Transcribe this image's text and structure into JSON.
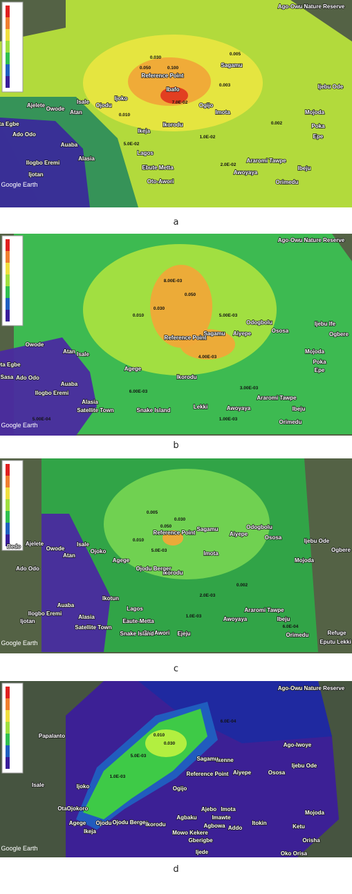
{
  "panels": [
    {
      "label": "a",
      "places": [
        "Ago-Owu Nature Reserve",
        "Ijebu Ode",
        "Reference Point",
        "Ibafo",
        "Sagamu",
        "Ikorodu",
        "Imota",
        "Mojoda",
        "Poka",
        "Epe",
        "Araromi Tawpe",
        "Ibeju",
        "Orimedu",
        "Awoyaya",
        "Lagos",
        "Ikeja",
        "Ebute Metta",
        "Oto-Awori",
        "Alasia",
        "Auaba",
        "Ilogbo Eremi",
        "Ijotan",
        "Ado Odo",
        "Ota Egbe",
        "Ajelete",
        "Owode",
        "Atan",
        "Isale",
        "Ojodu",
        "Ijoko",
        "Ogijo",
        "Google Earth"
      ],
      "contours": [
        "0.100",
        "0.050",
        "0.030",
        "0.010",
        "0.005",
        "0.003",
        "0.002",
        "1.0E-02",
        "7.0E-02",
        "5.0E-02",
        "2.0E-02"
      ]
    },
    {
      "label": "b",
      "places": [
        "Ago-Owu Nature Reserve",
        "Reference Point",
        "Sagamu",
        "Ikorodu",
        "Agege",
        "Alasia",
        "Satellite Town",
        "Snake Island",
        "Lekki",
        "Awoyaya",
        "Araromi Tawpe",
        "Ibeju",
        "Orimedu",
        "Mojoda",
        "Poka",
        "Epe",
        "Ososa",
        "Aiyepe",
        "Odogbolu",
        "Ijebu Ife",
        "Ogbere",
        "Ado Odo",
        "Ota Egbe",
        "Sasa",
        "Owode",
        "Atan",
        "Isale",
        "Auaba",
        "Ilogbo Eremi",
        "Google Earth"
      ],
      "contours": [
        "0.030",
        "0.050",
        "0.010",
        "8.00E-03",
        "5.00E-03",
        "6.00E-03",
        "3.00E-03",
        "1.00E-03",
        "5.00E-04",
        "4.00E-03"
      ]
    },
    {
      "label": "c",
      "places": [
        "Refuge",
        "Eputu Lekki",
        "Reference Point",
        "Sagamu",
        "Aiyepe",
        "Odogbolu",
        "Ososa",
        "Ijebu Ode",
        "Ogbere",
        "Mojoda",
        "Imota",
        "Ikorodu",
        "Agege",
        "Ojodu Berger",
        "Ikotun",
        "Lagos",
        "Alasia",
        "Satellite Town",
        "Eaute-Metta",
        "Oto-Awori",
        "Snake Island",
        "Ejeju",
        "Awoyaya",
        "Araromi Tawpe",
        "Ibeju",
        "Orimedu",
        "Bedo",
        "Ado Odo",
        "Ajelete",
        "Owode",
        "Atan",
        "Isale",
        "Ojoko",
        "Auaba",
        "Ilogbo Eremi",
        "Ijotan",
        "Google Earth"
      ],
      "contours": [
        "0.050",
        "0.030",
        "0.010",
        "5.0E-03",
        "2.0E-03",
        "1.0E-03",
        "0.002",
        "0.005",
        "6.0E-04"
      ]
    },
    {
      "label": "d",
      "places": [
        "Ago-Owu Nature Reserve",
        "Ago-Iwoye",
        "Ijebu Ode",
        "Ososa",
        "Aiyepe",
        "Ikenne",
        "Sagamu",
        "Reference Point",
        "Ogijo",
        "Ijoko",
        "Ota",
        "Ojokoro",
        "Agege",
        "Ojodu",
        "Ojodu Berger",
        "Ikorodu",
        "Ikeja",
        "Agbaku",
        "Ajebo",
        "Imota",
        "Imawte",
        "Agbowa",
        "Addo",
        "Itokin",
        "Mowo Kekere",
        "Gberigbe",
        "Ijede",
        "Isale",
        "Papalanto",
        "Ketu",
        "Mojoda",
        "Orisha",
        "Oko Orisa",
        "Google Earth"
      ],
      "contours": [
        "5.0E-03",
        "1.0E-03",
        "0.010",
        "0.030",
        "6.0E-04"
      ]
    }
  ]
}
